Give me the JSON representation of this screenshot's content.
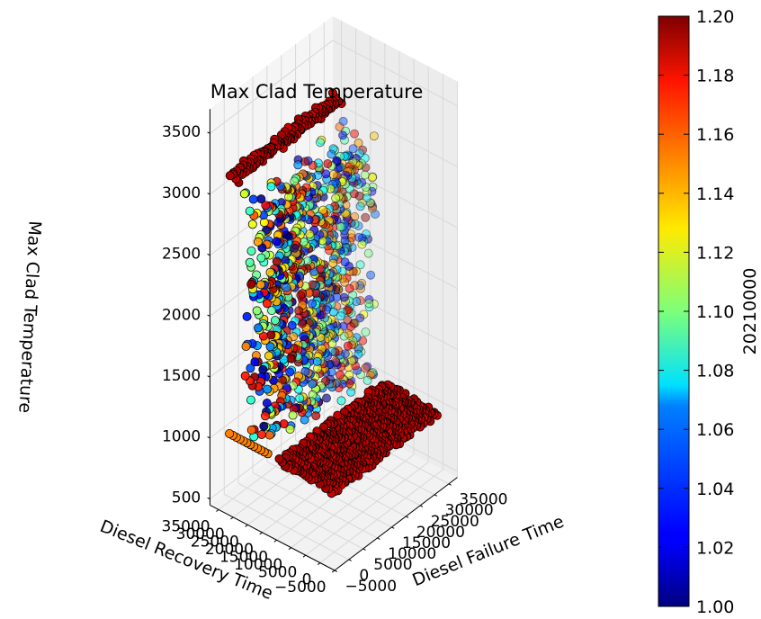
{
  "chart_data": {
    "type": "scatter",
    "projection": "3d",
    "title": "Max Clad Temperature",
    "xlabel": "Diesel Failure Time",
    "ylabel": "Diesel Recovery Time",
    "zlabel": "Max Clad Temperature",
    "x_ticks": [
      "−5000",
      "0",
      "5000",
      "10000",
      "15000",
      "20000",
      "25000",
      "30000",
      "35000"
    ],
    "y_ticks": [
      "−5000",
      "0",
      "5000",
      "10000",
      "15000",
      "20000",
      "25000",
      "30000",
      "35000"
    ],
    "z_ticks": [
      "500",
      "1000",
      "1500",
      "2000",
      "2500",
      "3000",
      "3500"
    ],
    "xlim": [
      -5000,
      38000
    ],
    "ylim": [
      -5000,
      38000
    ],
    "zlim": [
      450,
      3700
    ],
    "grid": true,
    "colorbar": {
      "label": "20210000",
      "min": 1.0,
      "max": 1.2,
      "ticks": [
        "1.00",
        "1.02",
        "1.04",
        "1.06",
        "1.08",
        "1.10",
        "1.12",
        "1.14",
        "1.16",
        "1.18",
        "1.20"
      ],
      "colormap": "jet"
    },
    "series": [
      {
        "description_values": "upper plateau: failure time 0–36000 step 1200, recovery time 33000–36000, temperature ≈3050–3150",
        "x_range": [
          0,
          36000
        ],
        "y_range": [
          33000,
          36000
        ],
        "z": 3100,
        "color_value": 1.19
      },
      {
        "description_values": "lower plateau: failure time 0–36000, recovery time 0–19000, temperature ≈880–1000",
        "x_range": [
          0,
          36000
        ],
        "y_range": [
          0,
          19000
        ],
        "z": 950,
        "color_value": 1.19
      },
      {
        "description_values": "transition wall: recovery time ≈20000–32000, temperature 1000–3000",
        "x_range": [
          0,
          36000
        ],
        "y_range": [
          20000,
          32000
        ],
        "z_range": [
          1000,
          3000
        ],
        "color_value_range": [
          1.0,
          1.2
        ]
      },
      {
        "description_values": "low edge row at failure time ≈ −1000",
        "x": -1000,
        "y_range": [
          22000,
          36000
        ],
        "z": 1000,
        "color_value": 1.15
      }
    ]
  }
}
